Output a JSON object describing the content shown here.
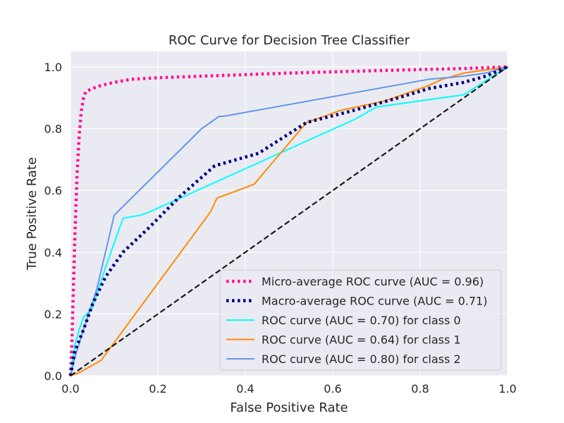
{
  "chart_data": {
    "type": "line",
    "title": "ROC Curve for Decision Tree Classifier",
    "xlabel": "False Positive Rate",
    "ylabel": "True Positive Rate",
    "xlim": [
      0.0,
      1.0
    ],
    "ylim": [
      0.0,
      1.05
    ],
    "xticks": [
      0.0,
      0.2,
      0.4,
      0.6,
      0.8,
      1.0
    ],
    "yticks": [
      0.0,
      0.2,
      0.4,
      0.6,
      0.8,
      1.0
    ],
    "xtick_labels": [
      "0.0",
      "0.2",
      "0.4",
      "0.6",
      "0.8",
      "1.0"
    ],
    "ytick_labels": [
      "0.0",
      "0.2",
      "0.4",
      "0.6",
      "0.8",
      "1.0"
    ],
    "grid": true,
    "background": "#eaeaf2",
    "legend_placement": "lower right",
    "series": [
      {
        "name": "Micro-average ROC curve (AUC = 0.96)",
        "color": "#ff1493",
        "style": "dotted",
        "x": [
          0,
          0.003,
          0.006,
          0.01,
          0.015,
          0.02,
          0.025,
          0.03,
          0.035,
          0.05,
          0.07,
          0.1,
          0.14,
          0.2,
          0.3,
          0.5,
          0.7,
          0.9,
          1.0
        ],
        "y": [
          0,
          0.1,
          0.25,
          0.45,
          0.65,
          0.78,
          0.86,
          0.9,
          0.92,
          0.93,
          0.94,
          0.95,
          0.96,
          0.965,
          0.97,
          0.98,
          0.988,
          0.995,
          1.0
        ]
      },
      {
        "name": "Macro-average ROC curve (AUC = 0.71)",
        "color": "#000080",
        "style": "dotted",
        "x": [
          0,
          0.01,
          0.03,
          0.05,
          0.08,
          0.12,
          0.18,
          0.25,
          0.33,
          0.43,
          0.54,
          0.65,
          0.75,
          0.82,
          0.9,
          0.95,
          1.0
        ],
        "y": [
          0,
          0.08,
          0.15,
          0.23,
          0.32,
          0.4,
          0.48,
          0.58,
          0.68,
          0.72,
          0.82,
          0.86,
          0.9,
          0.93,
          0.95,
          0.97,
          1.0
        ]
      },
      {
        "name": "ROC curve (AUC = 0.70) for class 0",
        "color": "#00ffff",
        "style": "solid",
        "x": [
          0,
          0.01,
          0.02,
          0.03,
          0.05,
          0.08,
          0.12,
          0.16,
          0.18,
          0.65,
          0.7,
          0.9,
          1.0
        ],
        "y": [
          0,
          0.1,
          0.15,
          0.19,
          0.22,
          0.35,
          0.51,
          0.52,
          0.53,
          0.83,
          0.87,
          0.91,
          1.0
        ]
      },
      {
        "name": "ROC curve (AUC = 0.64) for class 1",
        "color": "#ff8c00",
        "style": "solid",
        "x": [
          0,
          0.02,
          0.07,
          0.32,
          0.335,
          0.42,
          0.54,
          0.62,
          0.72,
          0.82,
          0.85,
          0.9,
          1.0
        ],
        "y": [
          0,
          0.01,
          0.05,
          0.53,
          0.575,
          0.62,
          0.82,
          0.86,
          0.89,
          0.94,
          0.96,
          0.98,
          1.0
        ]
      },
      {
        "name": "ROC curve (AUC = 0.80) for class 2",
        "color": "#6495ed",
        "style": "solid",
        "x": [
          0,
          0.01,
          0.03,
          0.06,
          0.1,
          0.2,
          0.3,
          0.34,
          0.35,
          0.82,
          0.9,
          0.95,
          1.0
        ],
        "y": [
          0,
          0.06,
          0.15,
          0.28,
          0.52,
          0.66,
          0.8,
          0.84,
          0.84,
          0.96,
          0.97,
          0.98,
          1.0
        ]
      },
      {
        "name": "",
        "color": "#1a1a1a",
        "style": "dashed",
        "x": [
          0,
          1.0
        ],
        "y": [
          0,
          1.0
        ]
      }
    ]
  }
}
